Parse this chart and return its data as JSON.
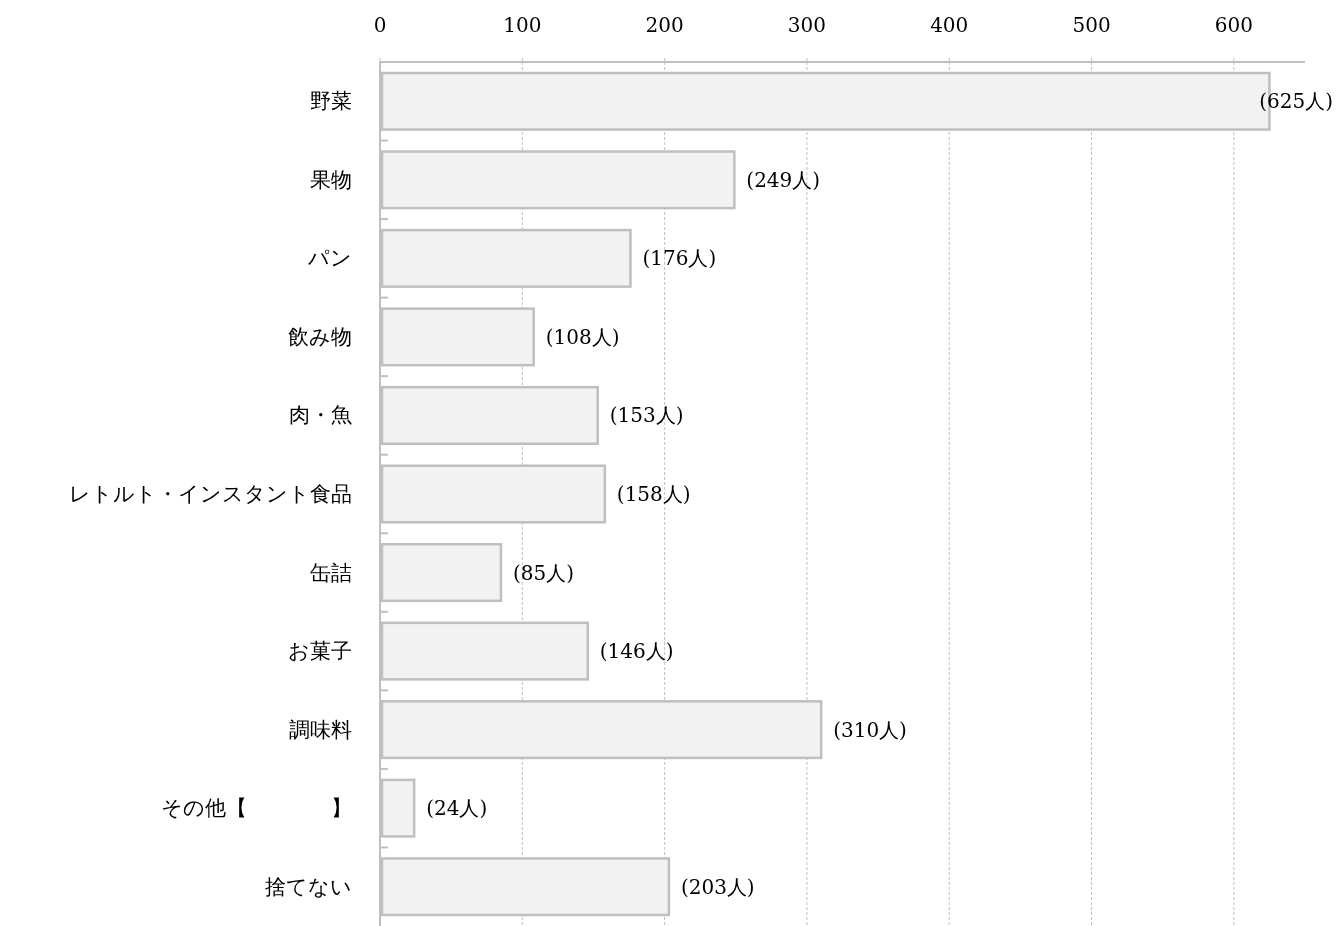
{
  "chart_data": {
    "type": "bar",
    "orientation": "horizontal",
    "categories": [
      "野菜",
      "果物",
      "パン",
      "飲み物",
      "肉・魚",
      "レトルト・インスタント食品",
      "缶詰",
      "お菓子",
      "調味料",
      "その他【　　　　】",
      "捨てない"
    ],
    "values": [
      625,
      249,
      176,
      108,
      153,
      158,
      85,
      146,
      310,
      24,
      203
    ],
    "value_labels": [
      "(625人)",
      "(249人)",
      "(176人)",
      "(108人)",
      "(153人)",
      "(158人)",
      "(85人)",
      "(146人)",
      "(310人)",
      "(24人)",
      "(203人)"
    ],
    "color": "#f2f2f2",
    "xlim": [
      0,
      650
    ],
    "xticks": [
      0,
      100,
      200,
      300,
      400,
      500,
      600
    ],
    "grid": "x"
  }
}
